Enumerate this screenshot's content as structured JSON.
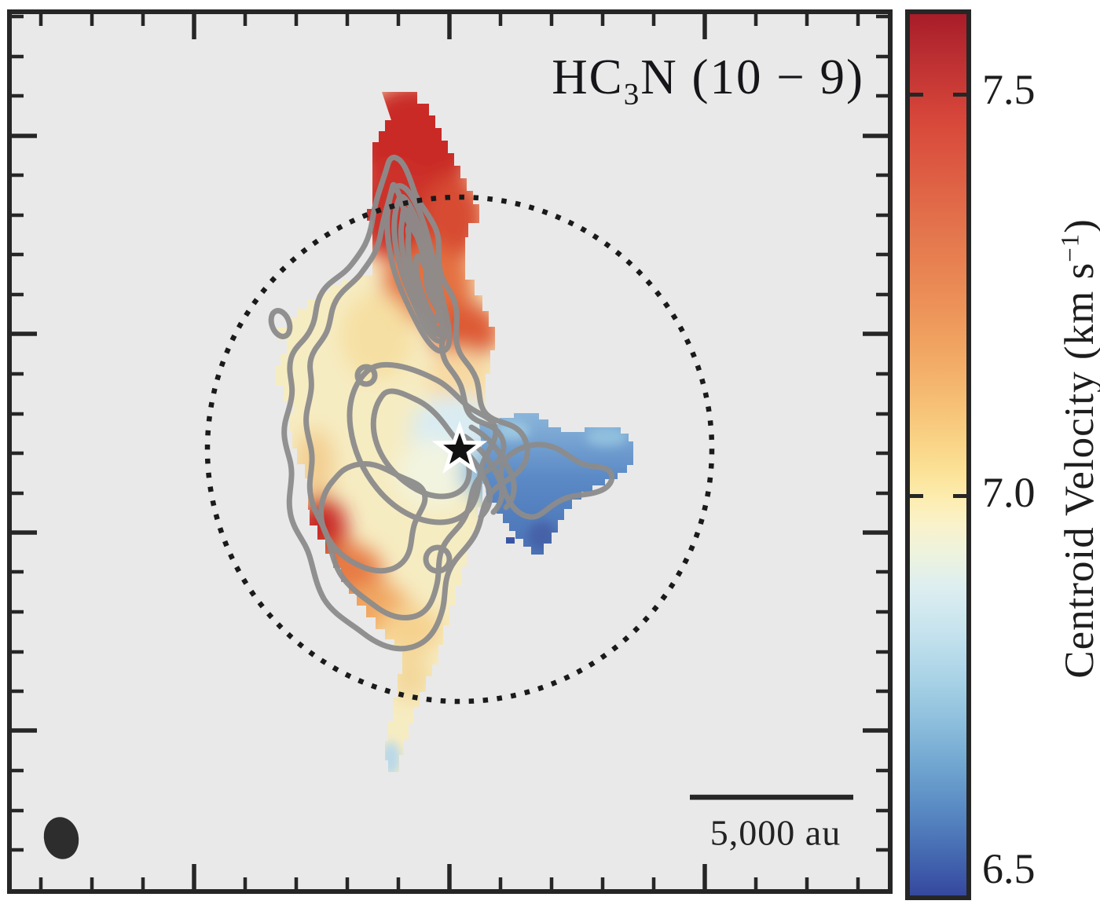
{
  "figure": {
    "title": {
      "prefix": "HC",
      "sub": "3",
      "suffix": "N (10 − 9)"
    },
    "scalebar_label": "5,000 au",
    "colorbar": {
      "tick_labels": [
        "7.5",
        "7.0",
        "6.5"
      ],
      "label_prefix": "Centroid Velocity (km s",
      "label_sup": "−1",
      "label_close": ")"
    },
    "colors": {
      "plot_background": "#e9e9e9",
      "frame": "#262626",
      "contour_gray": "#8c8c8c",
      "redshifted": "#c92b28",
      "blueshifted": "#4a73b5"
    }
  },
  "chart_data": {
    "type": "heatmap",
    "title": "HC3N (10 − 9)",
    "description": "Centroid velocity map (moment-1) of HC3N J=10-9 emission. Gray contours trace integrated intensity; a dotted circle marks the region of interest centered on the protostar (black/white star). Filled dark ellipse at lower left is the synthesized beam; scale bar shows 5,000 au.",
    "colorbar": {
      "label": "Centroid Velocity (km s⁻¹)",
      "ticks": [
        7.5,
        7.0,
        6.5
      ],
      "range_km_s": [
        6.5,
        7.6
      ],
      "colormap": "RdYlBu reversed (red = redshifted, blue = blueshifted)",
      "stops": [
        [
          "#a81c29",
          0
        ],
        [
          "#bc2f32",
          5
        ],
        [
          "#d8473a",
          12
        ],
        [
          "#e4764d",
          25
        ],
        [
          "#ea8a55",
          31
        ],
        [
          "#f0a160",
          37
        ],
        [
          "#f5ba71",
          43
        ],
        [
          "#f9d184",
          48
        ],
        [
          "#fbe094",
          51.5
        ],
        [
          "#fdedb0",
          55
        ],
        [
          "#f9f2cc",
          58
        ],
        [
          "#eef3dd",
          61
        ],
        [
          "#ddeef0",
          65
        ],
        [
          "#c6e3ee",
          70
        ],
        [
          "#abd4e7",
          75
        ],
        [
          "#8fc0dd",
          80
        ],
        [
          "#72a7d1",
          85
        ],
        [
          "#5a8bc4",
          90
        ],
        [
          "#4a72b6",
          94
        ],
        [
          "#3f5dab",
          97
        ],
        [
          "#36489e",
          100
        ]
      ]
    },
    "scale_bar": {
      "label": "5,000 au"
    },
    "markers": [
      {
        "name": "protostar",
        "symbol": "star",
        "color": "black with white outline",
        "location": "map center"
      },
      {
        "name": "synthesized-beam",
        "symbol": "filled ellipse",
        "location": "lower left"
      },
      {
        "name": "region-circle",
        "symbol": "dotted circle",
        "location": "centered on protostar"
      }
    ],
    "velocity_structure": [
      {
        "region": "northern lobe",
        "centroid_velocity_km_s": 7.5
      },
      {
        "region": "upper ridge / finger contours",
        "centroid_velocity_km_s": 7.2
      },
      {
        "region": "southwest red patch",
        "centroid_velocity_km_s": 7.4
      },
      {
        "region": "central core near protostar",
        "centroid_velocity_km_s": 6.9
      },
      {
        "region": "western lobe",
        "centroid_velocity_km_s": 6.7
      },
      {
        "region": "southern tail",
        "centroid_velocity_km_s": 7.0
      }
    ]
  }
}
